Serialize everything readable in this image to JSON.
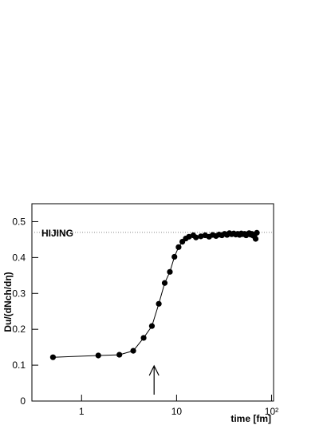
{
  "chart_data": {
    "type": "line",
    "annotation": "HIJING",
    "xlabel": "time [fm]",
    "ylabel": "Du/(dNch/dη)",
    "xscale": "log",
    "xlim": [
      0.3,
      105
    ],
    "xticks": [
      1,
      10,
      {
        "value": 100,
        "label": "10²"
      }
    ],
    "ylim": [
      0,
      0.55
    ],
    "yticks": [
      0,
      0.1,
      0.2,
      0.3,
      0.4,
      0.5
    ],
    "reference_line": 0.47,
    "arrow_x": 5.8,
    "color": "#000000",
    "x": [
      0.5,
      1.5,
      2.5,
      3.5,
      4.5,
      5.5,
      6.5,
      7.5,
      8.5,
      9.5,
      10.5,
      11.5,
      12.5,
      13.5,
      15,
      16,
      18,
      20,
      22,
      24,
      26,
      28,
      30,
      32,
      34,
      36,
      38,
      40,
      42,
      44,
      46,
      48,
      50,
      52,
      54,
      56,
      58,
      60,
      62,
      64,
      66,
      68,
      70
    ],
    "values": [
      0.122,
      0.127,
      0.129,
      0.14,
      0.176,
      0.209,
      0.271,
      0.329,
      0.36,
      0.402,
      0.429,
      0.444,
      0.453,
      0.458,
      0.462,
      0.456,
      0.459,
      0.462,
      0.458,
      0.463,
      0.46,
      0.464,
      0.462,
      0.466,
      0.463,
      0.468,
      0.465,
      0.467,
      0.464,
      0.466,
      0.463,
      0.467,
      0.465,
      0.466,
      0.462,
      0.465,
      0.468,
      0.464,
      0.466,
      0.461,
      0.463,
      0.452,
      0.469
    ]
  }
}
